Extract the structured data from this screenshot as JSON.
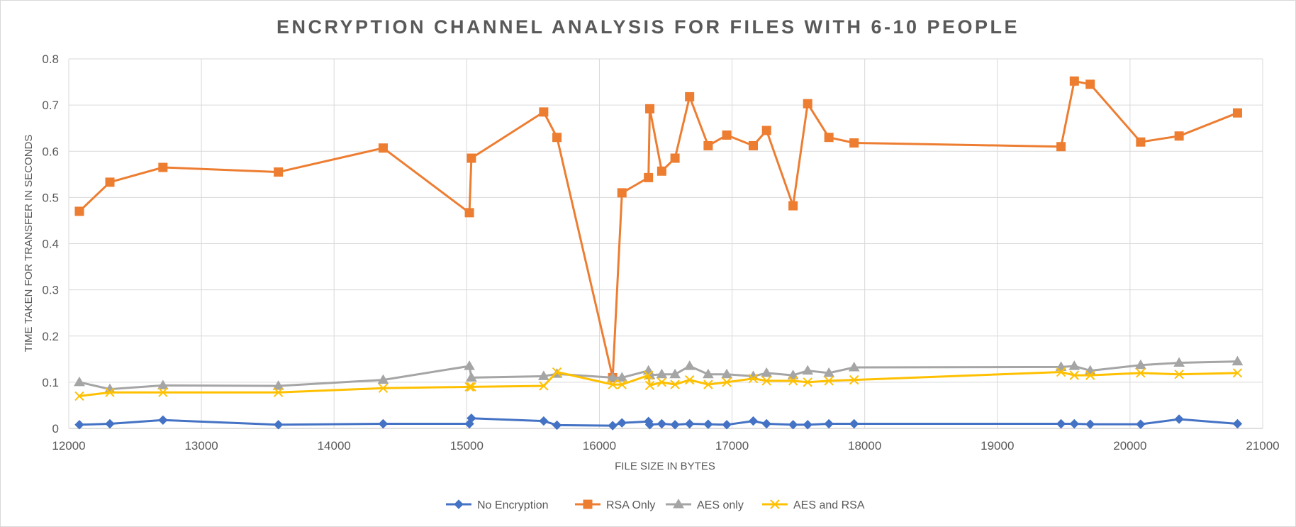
{
  "chart_data": {
    "type": "line",
    "title": "ENCRYPTION CHANNEL ANALYSIS FOR FILES WITH 6-10 PEOPLE",
    "xlabel": "FILE SIZE IN BYTES",
    "ylabel": "TIME TAKEN FOR TRANSFER IN SECONDS",
    "xlim": [
      12000,
      21000
    ],
    "ylim": [
      0,
      0.8
    ],
    "xticks": [
      12000,
      13000,
      14000,
      15000,
      16000,
      17000,
      18000,
      19000,
      20000,
      21000
    ],
    "yticks": [
      0,
      0.1,
      0.2,
      0.3,
      0.4,
      0.5,
      0.6,
      0.7,
      0.8
    ],
    "xtick_labels": [
      "12000",
      "13000",
      "14000",
      "15000",
      "16000",
      "17000",
      "18000",
      "19000",
      "20000",
      "21000"
    ],
    "ytick_labels": [
      "0",
      "0.1",
      "0.2",
      "0.3",
      "0.4",
      "0.5",
      "0.6",
      "0.7",
      "0.8"
    ],
    "grid": true,
    "legend": "bottom",
    "x": [
      12080,
      12310,
      12710,
      13580,
      14370,
      15020,
      15035,
      15580,
      15680,
      16100,
      16170,
      16370,
      16380,
      16470,
      16570,
      16680,
      16820,
      16960,
      17160,
      17260,
      17460,
      17570,
      17730,
      17920,
      19480,
      19580,
      19700,
      20080,
      20370,
      20810
    ],
    "series": [
      {
        "name": "No Encryption",
        "color": "#4472C4",
        "marker": "diamond",
        "values": [
          0.008,
          0.01,
          0.018,
          0.008,
          0.01,
          0.01,
          0.022,
          0.016,
          0.007,
          0.006,
          0.012,
          0.015,
          0.008,
          0.01,
          0.008,
          0.01,
          0.009,
          0.008,
          0.016,
          0.01,
          0.008,
          0.008,
          0.01,
          0.01,
          0.01,
          0.01,
          0.009,
          0.009,
          0.02,
          0.01
        ]
      },
      {
        "name": "RSA Only",
        "color": "#ED7D31",
        "marker": "square",
        "values": [
          0.47,
          0.533,
          0.565,
          0.555,
          0.607,
          0.467,
          0.585,
          0.685,
          0.63,
          0.11,
          0.51,
          0.543,
          0.692,
          0.557,
          0.585,
          0.718,
          0.612,
          0.635,
          0.612,
          0.645,
          0.482,
          0.703,
          0.63,
          0.618,
          0.61,
          0.752,
          0.745,
          0.62,
          0.633,
          0.683
        ]
      },
      {
        "name": "AES only",
        "color": "#A5A5A5",
        "marker": "triangle",
        "values": [
          0.1,
          0.085,
          0.093,
          0.092,
          0.105,
          0.135,
          0.11,
          0.113,
          0.118,
          0.11,
          0.11,
          0.125,
          0.115,
          0.117,
          0.117,
          0.135,
          0.117,
          0.117,
          0.113,
          0.12,
          0.115,
          0.125,
          0.12,
          0.132,
          0.133,
          0.135,
          0.125,
          0.137,
          0.142,
          0.145
        ]
      },
      {
        "name": "AES and RSA",
        "color": "#FFC000",
        "marker": "x",
        "values": [
          0.07,
          0.078,
          0.078,
          0.078,
          0.087,
          0.09,
          0.09,
          0.092,
          0.122,
          0.095,
          0.095,
          0.115,
          0.093,
          0.1,
          0.095,
          0.105,
          0.095,
          0.1,
          0.108,
          0.103,
          0.103,
          0.1,
          0.103,
          0.105,
          0.122,
          0.115,
          0.115,
          0.12,
          0.117,
          0.12
        ]
      }
    ]
  }
}
